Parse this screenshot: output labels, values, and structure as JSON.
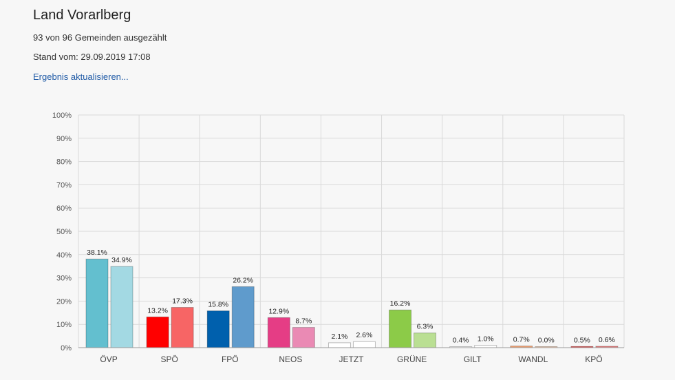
{
  "header": {
    "title": "Land Vorarlberg",
    "counted": "93 von 96 Gemeinden ausgezählt",
    "timestamp": "Stand vom: 29.09.2019 17:08",
    "refresh_link": "Ergebnis aktualisieren..."
  },
  "chart_data": {
    "type": "bar",
    "categories": [
      "ÖVP",
      "SPÖ",
      "FPÖ",
      "NEOS",
      "JETZT",
      "GRÜNE",
      "GILT",
      "WANDL",
      "KPÖ"
    ],
    "series": [
      {
        "values": [
          38.1,
          13.2,
          15.8,
          12.9,
          2.1,
          16.2,
          0.4,
          0.7,
          0.5
        ],
        "labels": [
          "38.1%",
          "13.2%",
          "15.8%",
          "12.9%",
          "2.1%",
          "16.2%",
          "0.4%",
          "0.7%",
          "0.5%"
        ]
      },
      {
        "values": [
          34.9,
          17.3,
          26.2,
          8.7,
          2.6,
          6.3,
          1.0,
          0.0,
          0.6
        ],
        "labels": [
          "34.9%",
          "17.3%",
          "26.2%",
          "8.7%",
          "2.6%",
          "6.3%",
          "1.0%",
          "0.0%",
          "0.6%"
        ]
      }
    ],
    "colors": {
      "ÖVP": [
        "#63bfcf",
        "#a3d9e3"
      ],
      "SPÖ": [
        "#ff0000",
        "#f76565"
      ],
      "FPÖ": [
        "#0060ad",
        "#5f9bcc"
      ],
      "NEOS": [
        "#e53d85",
        "#ea8ab4"
      ],
      "JETZT": [
        "#ffffff",
        "#ffffff"
      ],
      "GRÜNE": [
        "#8ccb48",
        "#badf93"
      ],
      "GILT": [
        "#ffffff",
        "#ffffff"
      ],
      "WANDL": [
        "#f0a070",
        "#f7c8a8"
      ],
      "KPÖ": [
        "#e04040",
        "#ea8080"
      ]
    },
    "yticks": [
      "0%",
      "10%",
      "20%",
      "30%",
      "40%",
      "50%",
      "60%",
      "70%",
      "80%",
      "90%",
      "100%"
    ],
    "ylim": [
      0,
      100
    ],
    "grid": true
  }
}
